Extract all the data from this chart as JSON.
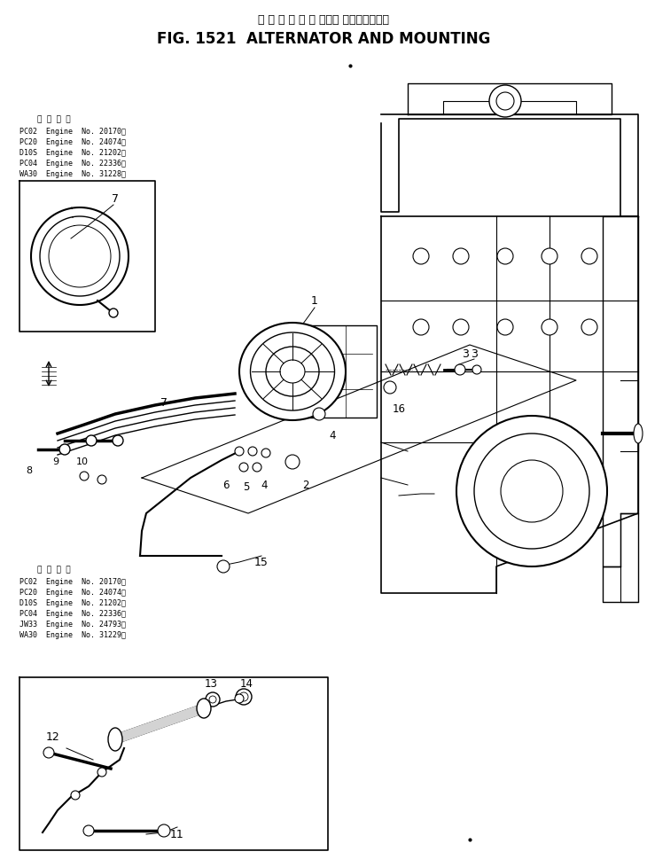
{
  "title_japanese": "オ ル タ ネ ー タ および マウンティング",
  "title_english": "FIG. 1521  ALTERNATOR AND MOUNTING",
  "background_color": "#ffffff",
  "fig_width": 7.3,
  "fig_height": 9.79,
  "dpi": 100,
  "text_color": "#000000",
  "top_note_header": "適 用 号 機",
  "top_notes": [
    "PC02  Engine  No. 20170～",
    "PC20  Engine  No. 24074～",
    "D10S  Engine  No. 21202～",
    "PC04  Engine  No. 22336～",
    "WA30  Engine  No. 31228～"
  ],
  "middle_note_header": "適 用 号 機",
  "middle_notes": [
    "PC02  Engine  No. 20170～",
    "PC20  Engine  No. 24074～",
    "D10S  Engine  No. 21202～",
    "PC04  Engine  No. 22336～",
    "JW33  Engine  No. 24793～",
    "WA30  Engine  No. 31229～"
  ],
  "dot1": [
    0.54,
    0.955
  ],
  "dot2": [
    0.72,
    0.03
  ]
}
